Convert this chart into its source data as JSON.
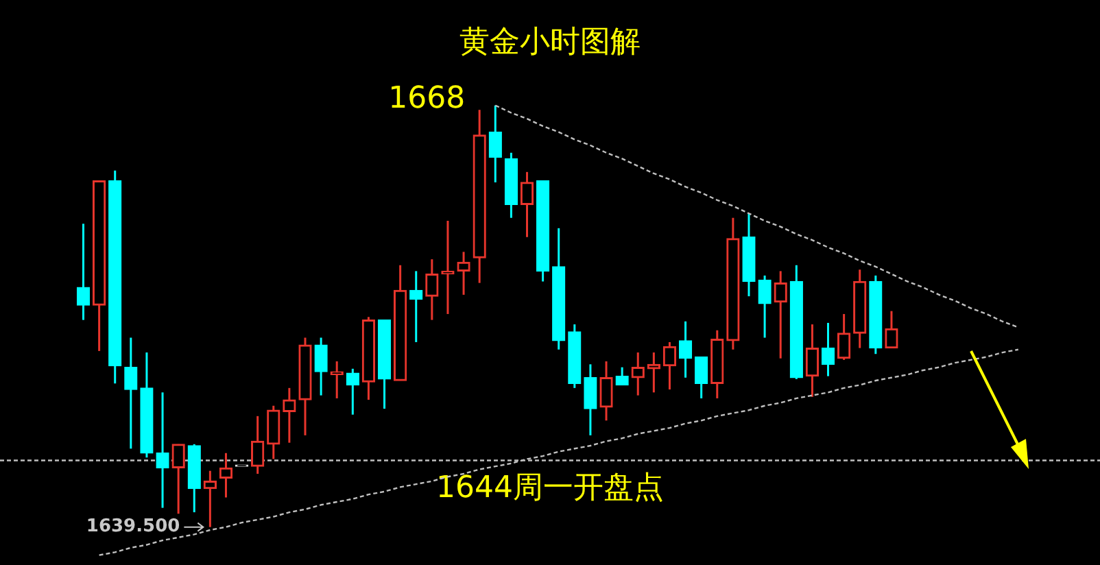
{
  "chart_data": {
    "type": "candlestick",
    "title": "黄金小时图解",
    "categories": [
      null,
      null,
      null,
      null,
      null,
      null,
      null,
      null,
      null,
      null,
      null,
      null,
      null,
      null,
      null,
      null,
      null,
      null,
      null,
      null,
      null,
      null,
      null,
      null,
      null,
      null,
      null,
      null,
      null,
      null,
      null,
      null,
      null,
      null,
      null,
      null,
      null,
      null,
      null,
      null,
      null,
      null,
      null,
      null,
      null,
      null,
      null,
      null,
      null,
      null,
      null,
      null,
      null,
      null,
      null,
      null,
      null,
      null,
      null,
      null
    ],
    "ohlc": [
      [
        1655.7,
        1660.0,
        1653.5,
        1654.5
      ],
      [
        1654.5,
        1662.9,
        1651.4,
        1662.9
      ],
      [
        1662.9,
        1663.6,
        1649.2,
        1650.4
      ],
      [
        1650.3,
        1652.3,
        1644.8,
        1648.8
      ],
      [
        1648.9,
        1651.3,
        1644.2,
        1644.5
      ],
      [
        1644.5,
        1648.6,
        1640.8,
        1643.5
      ],
      [
        1643.5,
        1645.1,
        1640.4,
        1645.1
      ],
      [
        1645.0,
        1645.1,
        1640.5,
        1642.1
      ],
      [
        1642.1,
        1643.3,
        1639.5,
        1642.6
      ],
      [
        1642.8,
        1644.5,
        1641.5,
        1643.5
      ],
      [
        1643.6,
        1643.6,
        1643.6,
        1643.6
      ],
      [
        1643.6,
        1647.0,
        1643.1,
        1645.3
      ],
      [
        1645.1,
        1647.7,
        1644.1,
        1647.4
      ],
      [
        1647.3,
        1648.9,
        1645.2,
        1648.1
      ],
      [
        1648.1,
        1652.3,
        1645.7,
        1651.8
      ],
      [
        1651.8,
        1652.3,
        1648.4,
        1650.0
      ],
      [
        1649.8,
        1650.7,
        1648.2,
        1650.0
      ],
      [
        1649.9,
        1650.2,
        1647.1,
        1649.1
      ],
      [
        1649.3,
        1653.7,
        1648.1,
        1653.5
      ],
      [
        1653.5,
        1653.5,
        1647.5,
        1649.5
      ],
      [
        1649.4,
        1657.2,
        1649.4,
        1655.5
      ],
      [
        1655.5,
        1656.8,
        1652.0,
        1654.9
      ],
      [
        1655.1,
        1657.6,
        1653.5,
        1656.6
      ],
      [
        1656.6,
        1660.2,
        1653.9,
        1656.8
      ],
      [
        1656.8,
        1658.1,
        1655.2,
        1657.4
      ],
      [
        1657.7,
        1667.7,
        1656.0,
        1666.0
      ],
      [
        1666.2,
        1668,
        1662.8,
        1664.5
      ],
      [
        1664.4,
        1664.8,
        1660.4,
        1661.3
      ],
      [
        1661.3,
        1663.5,
        1659.1,
        1662.8
      ],
      [
        1662.9,
        1662.9,
        1656.1,
        1656.8
      ],
      [
        1657.1,
        1659.7,
        1651.5,
        1652.1
      ],
      [
        1652.7,
        1653.2,
        1648.9,
        1649.2
      ],
      [
        1649.6,
        1650.5,
        1645.7,
        1647.5
      ],
      [
        1647.6,
        1650.7,
        1646.7,
        1649.6
      ],
      [
        1649.7,
        1650.3,
        1649.1,
        1649.1
      ],
      [
        1649.6,
        1651.3,
        1648.4,
        1650.3
      ],
      [
        1650.2,
        1651.3,
        1648.6,
        1650.5
      ],
      [
        1650.4,
        1652.0,
        1648.8,
        1651.7
      ],
      [
        1652.1,
        1653.4,
        1649.6,
        1650.9
      ],
      [
        1651.0,
        1651.0,
        1648.2,
        1649.2
      ],
      [
        1649.2,
        1652.8,
        1648.2,
        1652.2
      ],
      [
        1652.1,
        1660.4,
        1651.5,
        1659.0
      ],
      [
        1659.1,
        1660.7,
        1655.1,
        1656.1
      ],
      [
        1656.2,
        1656.5,
        1652.3,
        1654.6
      ],
      [
        1654.7,
        1656.8,
        1650.9,
        1656.0
      ],
      [
        1656.1,
        1657.2,
        1649.5,
        1649.6
      ],
      [
        1649.7,
        1653.2,
        1648.3,
        1651.6
      ],
      [
        1651.6,
        1653.3,
        1649.7,
        1650.5
      ],
      [
        1650.9,
        1653.9,
        1650.8,
        1652.6
      ],
      [
        1652.6,
        1656.9,
        1651.6,
        1656.1
      ],
      [
        1656.1,
        1656.5,
        1651.2,
        1651.6
      ],
      [
        1651.6,
        1654.1,
        1651.6,
        1652.9
      ],
      null,
      null,
      null,
      null,
      null,
      null,
      null,
      null
    ],
    "colors": [
      "#00ffff",
      "#e8352c",
      "#00ffff",
      "#00ffff",
      "#00ffff",
      "#00ffff",
      "#e8352c",
      "#00ffff",
      "#e8352c",
      "#e8352c",
      "#e0e0e0",
      "#e8352c",
      "#e8352c",
      "#e8352c",
      "#e8352c",
      "#00ffff",
      "#e8352c",
      "#00ffff",
      "#e8352c",
      "#00ffff",
      "#e8352c",
      "#00ffff",
      "#e8352c",
      "#e8352c",
      "#e8352c",
      "#e8352c",
      "#00ffff",
      "#00ffff",
      "#e8352c",
      "#00ffff",
      "#00ffff",
      "#00ffff",
      "#00ffff",
      "#e8352c",
      "#00ffff",
      "#e8352c",
      "#e8352c",
      "#e8352c",
      "#00ffff",
      "#00ffff",
      "#e8352c",
      "#e8352c",
      "#00ffff",
      "#00ffff",
      "#e8352c",
      "#00ffff",
      "#e8352c",
      "#00ffff",
      "#e8352c",
      "#e8352c",
      "#00ffff",
      "#e8352c",
      null,
      null,
      null,
      null,
      null,
      null,
      null,
      null
    ],
    "series": [
      {
        "type": "line",
        "color": "#c0c0c0",
        "line_style": "dashed",
        "values": [
          null,
          null,
          null,
          null,
          null,
          null,
          null,
          null,
          null,
          null,
          null,
          null,
          null,
          null,
          null,
          null,
          null,
          null,
          null,
          null,
          null,
          null,
          null,
          null,
          null,
          null,
          1668.0,
          1667.5,
          1667.1,
          1666.6,
          1666.2,
          1665.7,
          1665.3,
          1664.8,
          1664.4,
          1663.9,
          1663.4,
          1663.0,
          1662.5,
          1662.1,
          1661.6,
          1661.2,
          1660.7,
          1660.2,
          1659.8,
          1659.3,
          1658.9,
          1658.4,
          1658.0,
          1657.5,
          1657.1,
          1656.6,
          1656.1,
          1655.7,
          1655.2,
          1654.8,
          1654.3,
          1653.9,
          1653.4,
          1653.0
        ]
      },
      {
        "type": "line",
        "color": "#c0c0c0",
        "line_style": "dashed",
        "values": [
          null,
          1637.6,
          1637.8,
          1638.1,
          1638.3,
          1638.6,
          1638.8,
          1639.0,
          1639.3,
          1639.5,
          1639.8,
          1640.0,
          1640.2,
          1640.5,
          1640.7,
          1641.0,
          1641.2,
          1641.4,
          1641.7,
          1641.9,
          1642.2,
          1642.4,
          1642.6,
          1642.9,
          1643.1,
          1643.4,
          1643.6,
          1643.8,
          1644.1,
          1644.3,
          1644.6,
          1644.8,
          1645.0,
          1645.3,
          1645.5,
          1645.8,
          1646.0,
          1646.2,
          1646.5,
          1646.7,
          1647.0,
          1647.2,
          1647.4,
          1647.7,
          1647.9,
          1648.2,
          1648.4,
          1648.6,
          1648.9,
          1649.1,
          1649.4,
          1649.6,
          1649.8,
          1650.1,
          1650.3,
          1650.6,
          1650.8,
          1651.0,
          1651.3,
          1651.5
        ]
      }
    ],
    "ref_lines": [
      {
        "axis": "y",
        "value": 1644,
        "label": "1644周一开盘点",
        "color": "#c0c0c0",
        "line_style": "dashed"
      }
    ],
    "annotations": [
      "1668",
      "1639.500"
    ],
    "legend": false
  }
}
